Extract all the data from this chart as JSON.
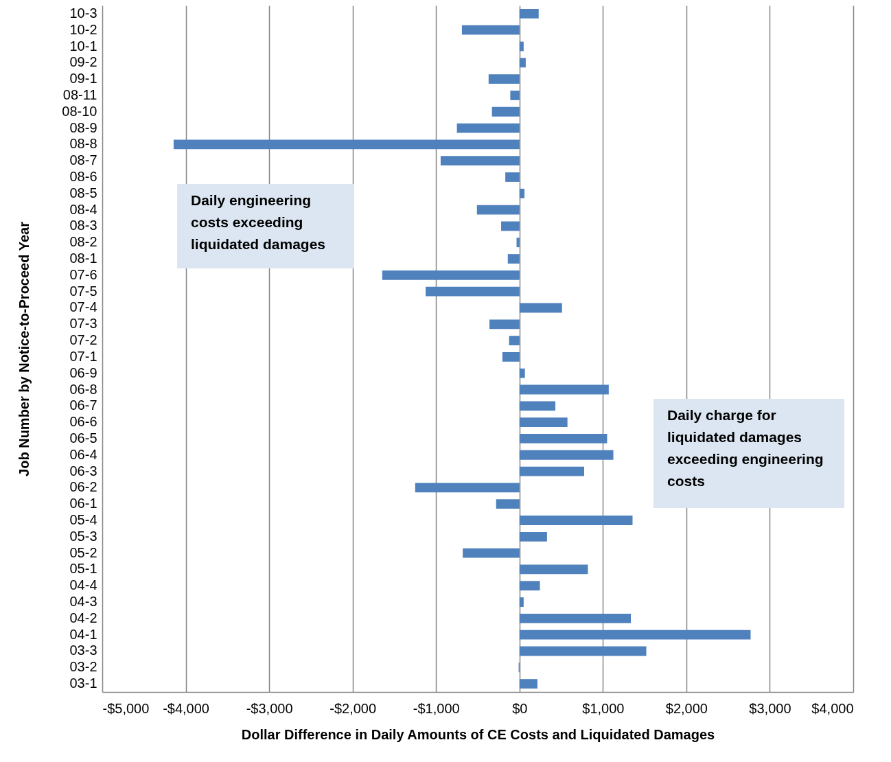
{
  "chart_data": {
    "type": "bar",
    "orientation": "horizontal",
    "xlabel": "Dollar Difference in Daily Amounts of CE Costs and Liquidated Damages",
    "ylabel": "Job Number by Notice-to-Proceed Year",
    "categories": [
      "10-3",
      "10-2",
      "10-1",
      "09-2",
      "09-1",
      "08-11",
      "08-10",
      "08-9",
      "08-8",
      "08-7",
      "08-6",
      "08-5",
      "08-4",
      "08-3",
      "08-2",
      "08-1",
      "07-6",
      "07-5",
      "07-4",
      "07-3",
      "07-2",
      "07-1",
      "06-9",
      "06-8",
      "06-7",
      "06-6",
      "06-5",
      "06-4",
      "06-3",
      "06-2",
      "06-1",
      "05-4",
      "05-3",
      "05-2",
      "05-1",
      "04-4",
      "04-3",
      "04-2",
      "04-1",
      "03-3",
      "03-2",
      "03-1"
    ],
    "values": [
      230,
      -690,
      50,
      75,
      -370,
      -110,
      -330,
      -750,
      -4145,
      -945,
      -170,
      60,
      -510,
      -220,
      -35,
      -140,
      -1645,
      -1125,
      510,
      -360,
      -125,
      -205,
      65,
      1070,
      430,
      575,
      1050,
      1125,
      775,
      -1250,
      -280,
      1355,
      330,
      -680,
      820,
      245,
      50,
      1335,
      2770,
      1520,
      -10,
      215
    ],
    "color": "#4f81bd",
    "xlim": [
      -5000,
      4000
    ],
    "xticks": [
      {
        "value": -5000,
        "label": "-$5,000"
      },
      {
        "value": -4000,
        "label": "-$4,000"
      },
      {
        "value": -3000,
        "label": "-$3,000"
      },
      {
        "value": -2000,
        "label": "-$2,000"
      },
      {
        "value": -1000,
        "label": "-$1,000"
      },
      {
        "value": 0,
        "label": "$0"
      },
      {
        "value": 1000,
        "label": "$1,000"
      },
      {
        "value": 2000,
        "label": "$2,000"
      },
      {
        "value": 3000,
        "label": "$3,000"
      },
      {
        "value": 4000,
        "label": "$4,000"
      }
    ],
    "grid": "x",
    "annotations": [
      "Daily engineering costs exceeding liquidated damages",
      "Daily charge for liquidated damages exceeding engineering costs"
    ]
  }
}
